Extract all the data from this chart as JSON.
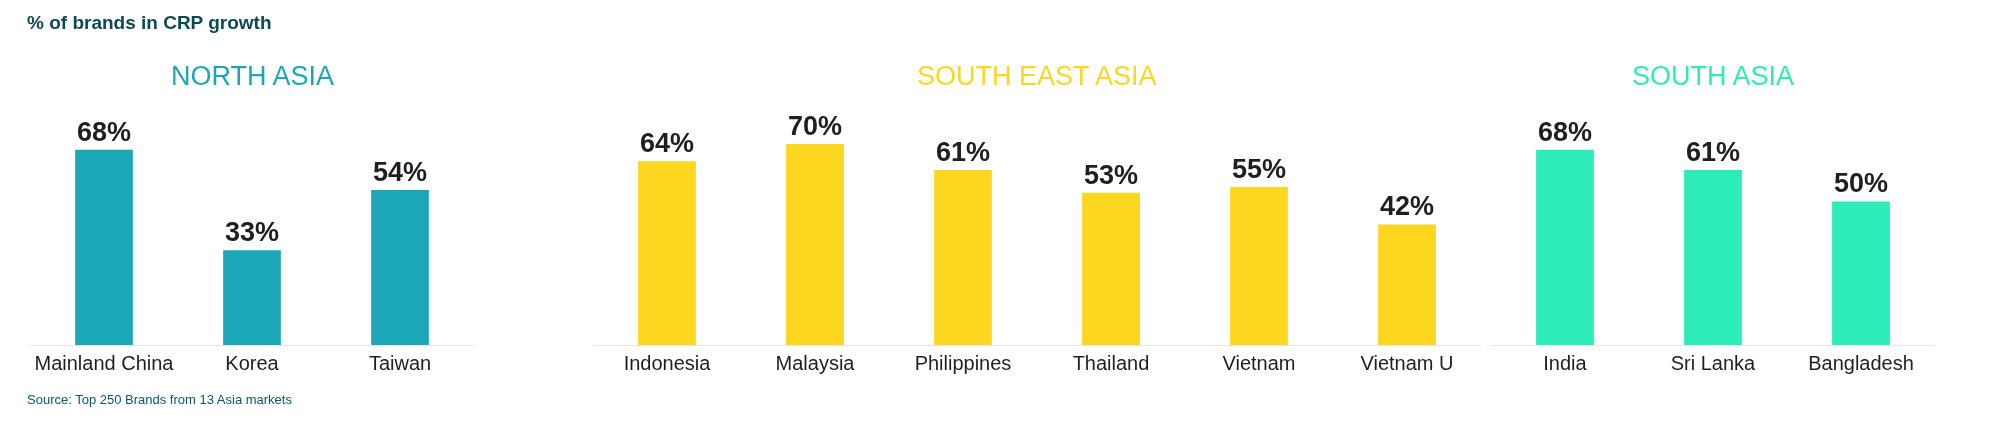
{
  "chart_data": [
    {
      "type": "bar",
      "title": "% of brands in CRP growth",
      "subtitle": "NORTH ASIA",
      "categories": [
        "Mainland China",
        "Korea",
        "Taiwan"
      ],
      "series": [
        {
          "color": "#1ba7b8",
          "values": [
            68,
            33,
            54
          ],
          "value_labels": [
            "68%",
            "33%",
            "54%"
          ]
        }
      ],
      "annotations": [
        "Source: Top 250 Brands from 13 Asia markets"
      ]
    },
    {
      "type": "bar",
      "subtitle": "SOUTH EAST ASIA",
      "categories": [
        "Indonesia",
        "Malaysia",
        "Philippines",
        "Thailand",
        "Vietnam",
        "Vietnam U"
      ],
      "series": [
        {
          "color": "#fdd61f",
          "values": [
            64,
            70,
            61,
            53,
            55,
            42
          ],
          "value_labels": [
            "64%",
            "70%",
            "61%",
            "53%",
            "55%",
            "42%"
          ]
        }
      ]
    },
    {
      "type": "bar",
      "subtitle": "SOUTH ASIA",
      "categories": [
        "India",
        "Sri Lanka",
        "Bangladesh"
      ],
      "series": [
        {
          "color": "#2cecb8",
          "values": [
            68,
            61,
            50
          ],
          "value_labels": [
            "68%",
            "61%",
            "50%"
          ]
        }
      ]
    }
  ]
}
